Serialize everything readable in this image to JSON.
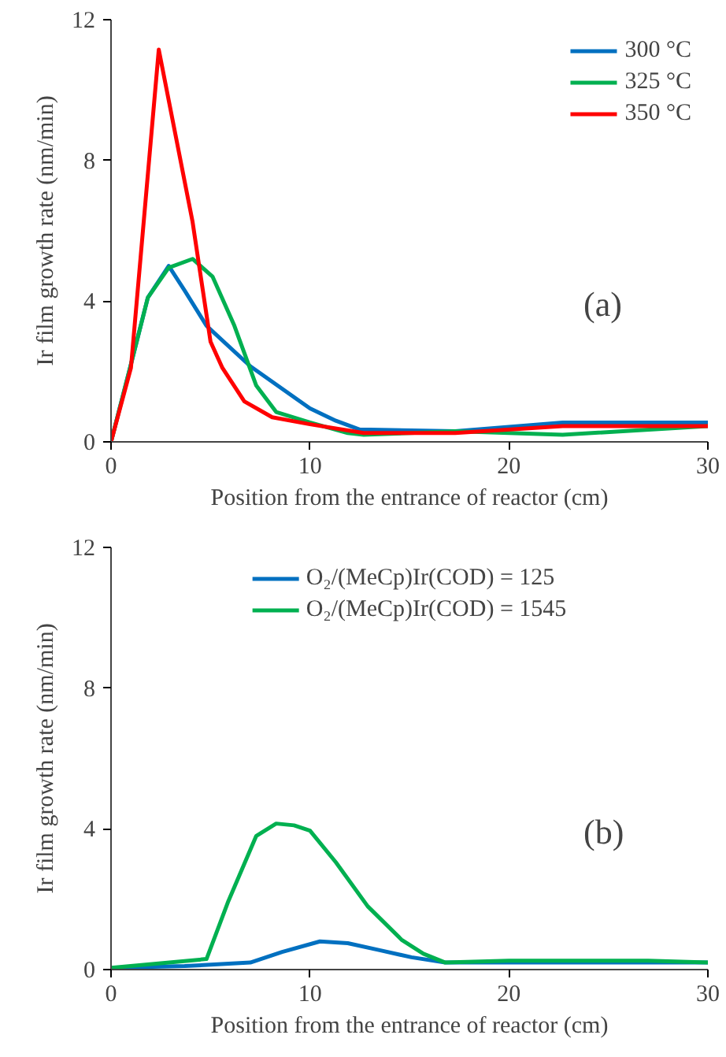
{
  "chart_data": [
    {
      "type": "line",
      "xlabel": "Position from the entrance of reactor (cm)",
      "ylabel": "Ir film growth rate (nm/min)",
      "xlim": [
        0,
        30
      ],
      "ylim": [
        0,
        12
      ],
      "xticks": [
        0,
        10,
        20,
        30
      ],
      "yticks": [
        0,
        4,
        8,
        12
      ],
      "grid": false,
      "legend": "top right",
      "annotations": [
        "(a)"
      ],
      "series": [
        {
          "name": "300 °C",
          "color": "#0070c0",
          "x": [
            0,
            1,
            1.85,
            2.9,
            3.7,
            4.8,
            7,
            10,
            11.3,
            12.5,
            17.3,
            22.7,
            30
          ],
          "values": [
            0,
            2.2,
            4.1,
            5.0,
            4.3,
            3.3,
            2.15,
            0.95,
            0.6,
            0.35,
            0.3,
            0.55,
            0.55
          ]
        },
        {
          "name": "325 °C",
          "color": "#00b050",
          "x": [
            0,
            1,
            1.85,
            2.9,
            4.1,
            5.1,
            6.2,
            7.3,
            8.3,
            10,
            11.9,
            12.7,
            17.3,
            22.7,
            30
          ],
          "values": [
            0,
            2.2,
            4.1,
            4.95,
            5.2,
            4.7,
            3.3,
            1.6,
            0.85,
            0.55,
            0.25,
            0.2,
            0.3,
            0.2,
            0.45
          ]
        },
        {
          "name": "350 °C",
          "color": "#ff0000",
          "x": [
            0,
            1,
            2.4,
            4.1,
            5.0,
            5.6,
            6.7,
            8.1,
            10,
            12.7,
            17.3,
            22.7,
            30
          ],
          "values": [
            0,
            2.1,
            11.15,
            6.25,
            2.85,
            2.1,
            1.15,
            0.7,
            0.5,
            0.25,
            0.25,
            0.45,
            0.45
          ]
        }
      ]
    },
    {
      "type": "line",
      "xlabel": "Position from the entrance of reactor (cm)",
      "ylabel": "Ir film growth rate (nm/min)",
      "xlim": [
        0,
        30
      ],
      "ylim": [
        0,
        12
      ],
      "xticks": [
        0,
        10,
        20,
        30
      ],
      "yticks": [
        0,
        4,
        8,
        12
      ],
      "grid": false,
      "legend": "top",
      "annotations": [
        "(b)"
      ],
      "series": [
        {
          "name": "O₂/(MeCp)Ir(COD) = 125",
          "color": "#0070c0",
          "x": [
            0,
            3.7,
            7,
            8.6,
            10.5,
            11.9,
            13.5,
            15.1,
            16.8,
            30
          ],
          "values": [
            0.05,
            0.1,
            0.2,
            0.5,
            0.8,
            0.75,
            0.55,
            0.35,
            0.2,
            0.2
          ]
        },
        {
          "name": "O₂/(MeCp)Ir(COD) = 1545",
          "color": "#00b050",
          "x": [
            0,
            4.8,
            5.9,
            7.3,
            8.3,
            9.2,
            10,
            11.3,
            12.9,
            14.6,
            15.7,
            16.8,
            20,
            27,
            30
          ],
          "values": [
            0.05,
            0.3,
            1.95,
            3.8,
            4.15,
            4.1,
            3.95,
            3.05,
            1.8,
            0.85,
            0.45,
            0.2,
            0.25,
            0.25,
            0.2
          ]
        }
      ]
    }
  ]
}
